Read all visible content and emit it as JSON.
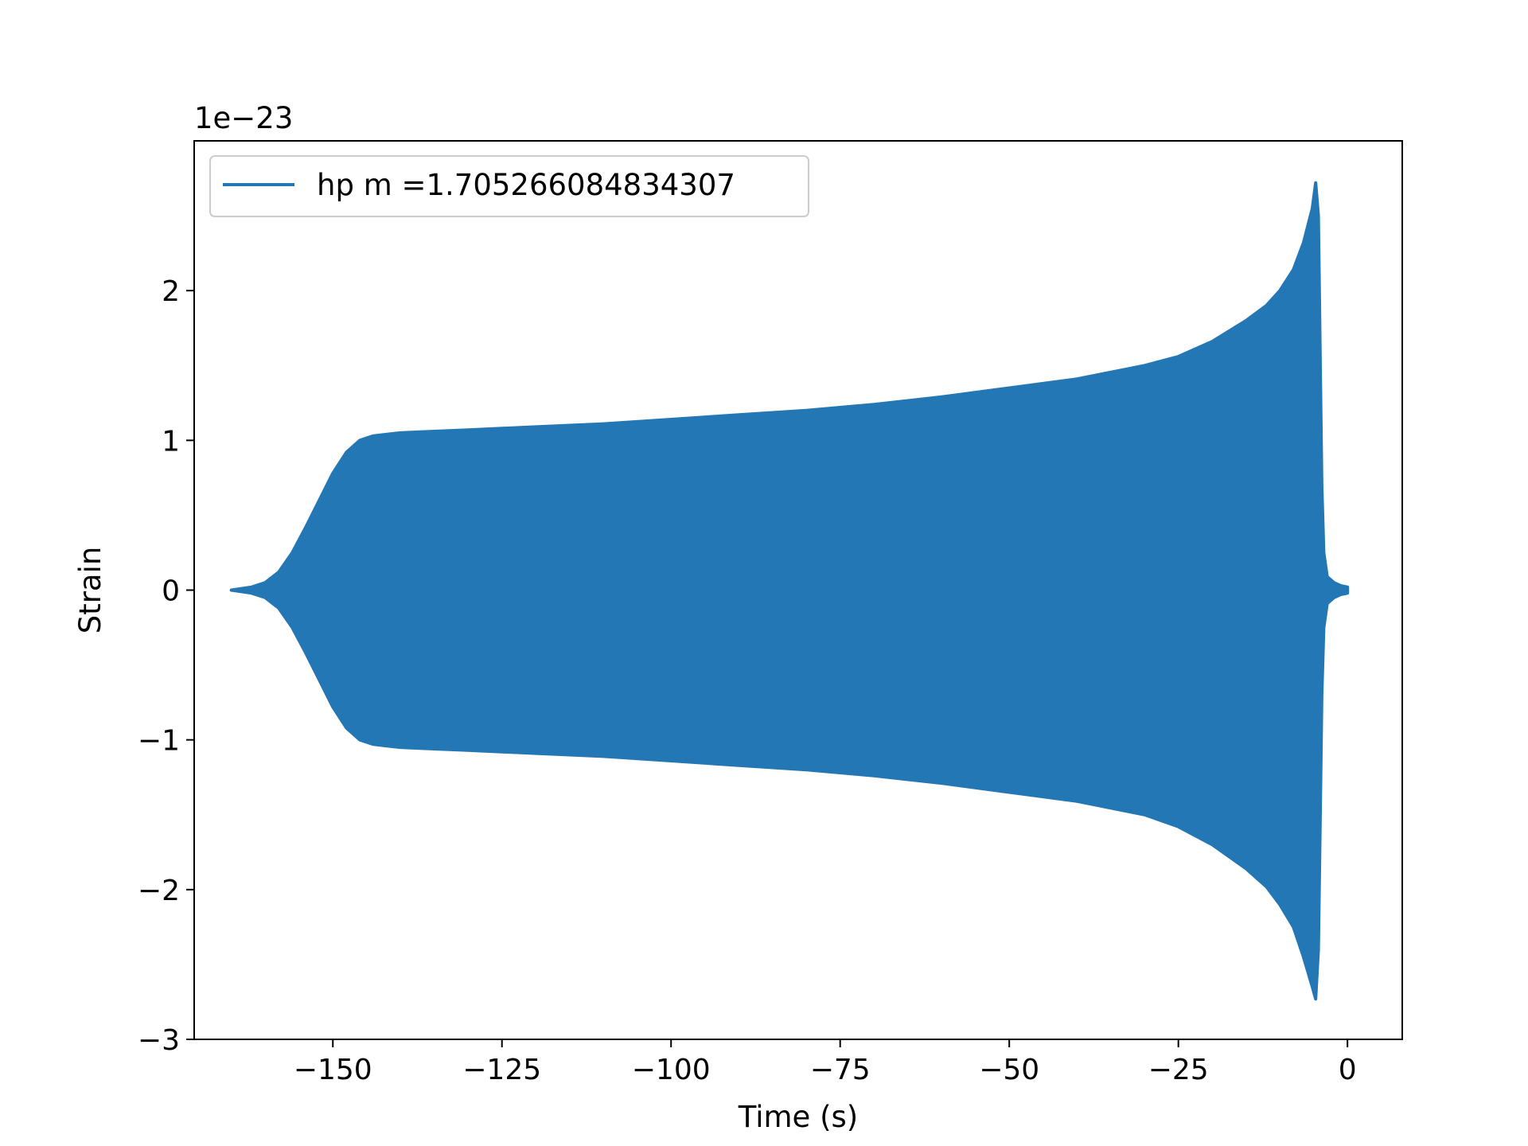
{
  "chart_data": {
    "type": "line",
    "title": "",
    "xlabel": "Time (s)",
    "ylabel": "Strain",
    "y_offset_text": "1e−23",
    "xlim": [
      -170.5,
      8.1
    ],
    "ylim": [
      -3.0,
      3.0
    ],
    "xticks": [
      -150,
      -125,
      -100,
      -75,
      -50,
      -25,
      0
    ],
    "xtick_labels": [
      "−150",
      "−125",
      "−100",
      "−75",
      "−50",
      "−25",
      "0"
    ],
    "yticks": [
      -3,
      -2,
      -1,
      0,
      1,
      2
    ],
    "ytick_labels": [
      "−3",
      "−2",
      "−1",
      "0",
      "1",
      "2"
    ],
    "grid": false,
    "legend_position": "upper left",
    "color": "#2277b4",
    "series": [
      {
        "name": "hp m =1.705266084834307",
        "envelope_upper": {
          "x": [
            -165.0,
            -162.0,
            -160.0,
            -158.0,
            -156.0,
            -154.0,
            -152.0,
            -150.0,
            -148.0,
            -146.0,
            -144.0,
            -142.0,
            -140.0,
            -135.0,
            -130.0,
            -125.0,
            -120.0,
            -115.0,
            -110.0,
            -100.0,
            -90.0,
            -80.0,
            -70.0,
            -60.0,
            -50.0,
            -40.0,
            -30.0,
            -25.0,
            -20.0,
            -15.0,
            -12.0,
            -10.0,
            -8.0,
            -6.5,
            -5.2,
            -4.7,
            -4.3,
            -4.0,
            -3.8,
            -3.5,
            -3.0,
            -2.0,
            -1.0,
            0.0
          ],
          "y": [
            0.0,
            0.02,
            0.05,
            0.12,
            0.25,
            0.42,
            0.6,
            0.78,
            0.92,
            1.0,
            1.03,
            1.04,
            1.05,
            1.06,
            1.07,
            1.08,
            1.09,
            1.1,
            1.11,
            1.14,
            1.17,
            1.2,
            1.24,
            1.29,
            1.35,
            1.41,
            1.5,
            1.56,
            1.66,
            1.8,
            1.9,
            2.0,
            2.14,
            2.32,
            2.55,
            2.72,
            2.5,
            1.4,
            0.7,
            0.25,
            0.09,
            0.05,
            0.03,
            0.02
          ]
        },
        "envelope_lower": {
          "x": [
            -165.0,
            -162.0,
            -160.0,
            -158.0,
            -156.0,
            -154.0,
            -152.0,
            -150.0,
            -148.0,
            -146.0,
            -144.0,
            -142.0,
            -140.0,
            -135.0,
            -130.0,
            -125.0,
            -120.0,
            -115.0,
            -110.0,
            -100.0,
            -90.0,
            -80.0,
            -70.0,
            -60.0,
            -50.0,
            -40.0,
            -30.0,
            -25.0,
            -20.0,
            -15.0,
            -12.0,
            -10.0,
            -8.0,
            -6.5,
            -5.2,
            -4.7,
            -4.3,
            -4.0,
            -3.8,
            -3.5,
            -3.0,
            -2.0,
            -1.0,
            0.0
          ],
          "y": [
            0.0,
            -0.02,
            -0.05,
            -0.12,
            -0.25,
            -0.42,
            -0.6,
            -0.78,
            -0.92,
            -1.0,
            -1.03,
            -1.04,
            -1.05,
            -1.06,
            -1.07,
            -1.08,
            -1.09,
            -1.1,
            -1.11,
            -1.14,
            -1.17,
            -1.2,
            -1.24,
            -1.29,
            -1.35,
            -1.41,
            -1.5,
            -1.58,
            -1.7,
            -1.86,
            -1.98,
            -2.1,
            -2.25,
            -2.45,
            -2.65,
            -2.73,
            -2.4,
            -1.4,
            -0.7,
            -0.25,
            -0.09,
            -0.05,
            -0.03,
            -0.02
          ]
        }
      }
    ]
  }
}
